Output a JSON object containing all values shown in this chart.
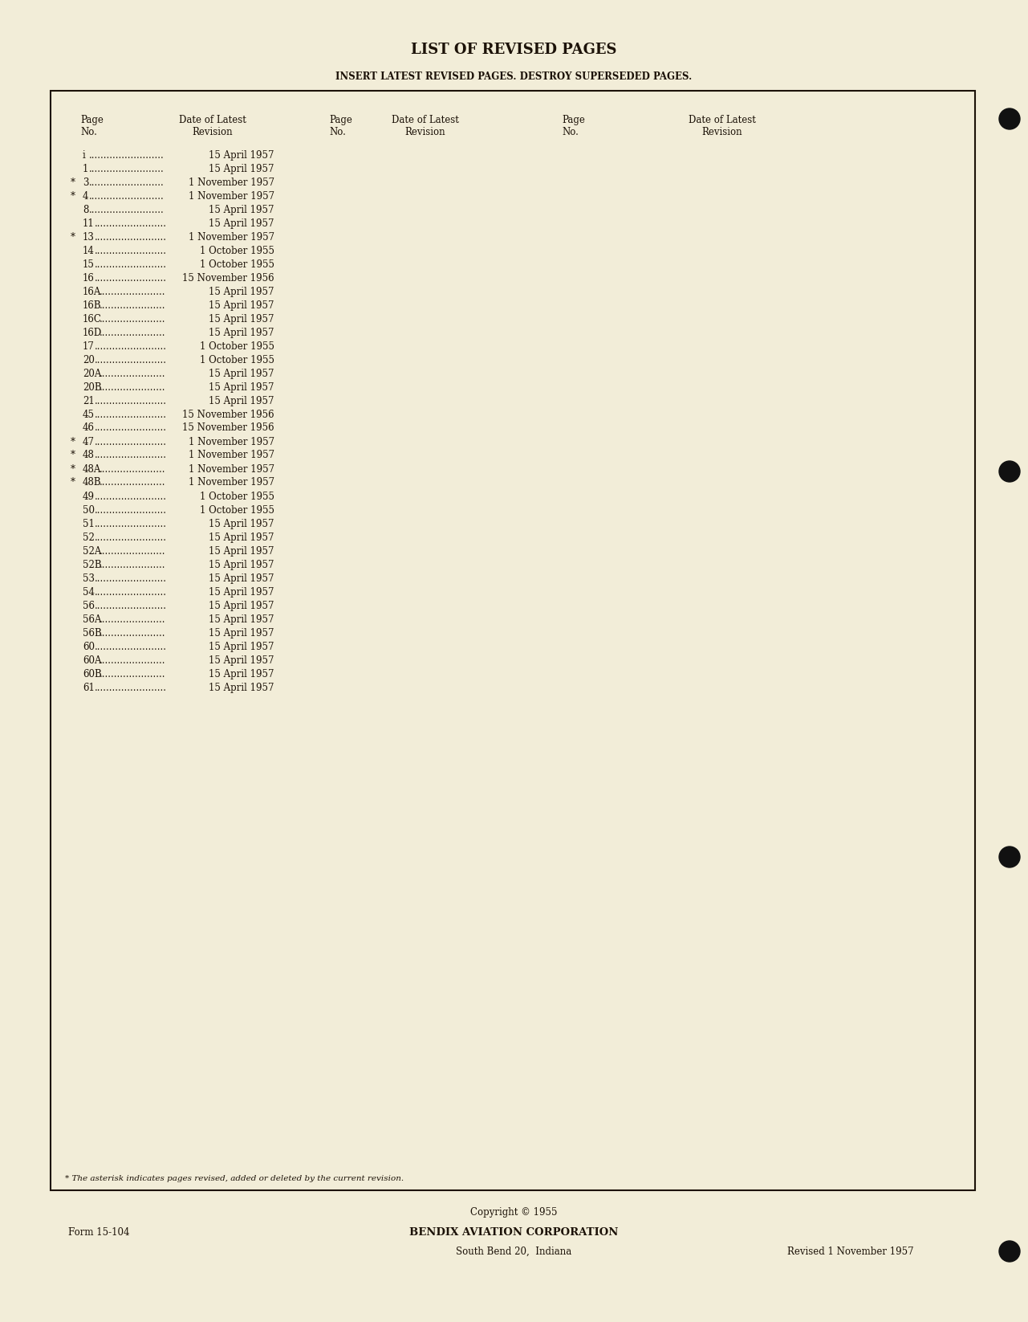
{
  "bg_color": "#f2edd8",
  "title": "LIST OF REVISED PAGES",
  "subtitle": "INSERT LATEST REVISED PAGES. DESTROY SUPERSEDED PAGES.",
  "entries": [
    {
      "page": "i",
      "date": "15 April 1957",
      "asterisk": false
    },
    {
      "page": "1",
      "date": "15 April 1957",
      "asterisk": false
    },
    {
      "page": "3",
      "date": "1 November 1957",
      "asterisk": true
    },
    {
      "page": "4",
      "date": "1 November 1957",
      "asterisk": true
    },
    {
      "page": "8",
      "date": "15 April 1957",
      "asterisk": false
    },
    {
      "page": "11",
      "date": "15 April 1957",
      "asterisk": false
    },
    {
      "page": "13",
      "date": "1 November 1957",
      "asterisk": true
    },
    {
      "page": "14",
      "date": "1 October 1955",
      "asterisk": false
    },
    {
      "page": "15",
      "date": "1 October 1955",
      "asterisk": false
    },
    {
      "page": "16",
      "date": "15 November 1956",
      "asterisk": false
    },
    {
      "page": "16A",
      "date": "15 April 1957",
      "asterisk": false
    },
    {
      "page": "16B",
      "date": "15 April 1957",
      "asterisk": false
    },
    {
      "page": "16C",
      "date": "15 April 1957",
      "asterisk": false
    },
    {
      "page": "16D",
      "date": "15 April 1957",
      "asterisk": false
    },
    {
      "page": "17",
      "date": "1 October 1955",
      "asterisk": false
    },
    {
      "page": "20",
      "date": "1 October 1955",
      "asterisk": false
    },
    {
      "page": "20A",
      "date": "15 April 1957",
      "asterisk": false
    },
    {
      "page": "20B",
      "date": "15 April 1957",
      "asterisk": false
    },
    {
      "page": "21",
      "date": "15 April 1957",
      "asterisk": false
    },
    {
      "page": "45",
      "date": "15 November 1956",
      "asterisk": false
    },
    {
      "page": "46",
      "date": "15 November 1956",
      "asterisk": false
    },
    {
      "page": "47",
      "date": "1 November 1957",
      "asterisk": true
    },
    {
      "page": "48",
      "date": "1 November 1957",
      "asterisk": true
    },
    {
      "page": "48A",
      "date": "1 November 1957",
      "asterisk": true
    },
    {
      "page": "48B",
      "date": "1 November 1957",
      "asterisk": true
    },
    {
      "page": "49",
      "date": "1 October 1955",
      "asterisk": false
    },
    {
      "page": "50",
      "date": "1 October 1955",
      "asterisk": false
    },
    {
      "page": "51",
      "date": "15 April 1957",
      "asterisk": false
    },
    {
      "page": "52",
      "date": "15 April 1957",
      "asterisk": false
    },
    {
      "page": "52A",
      "date": "15 April 1957",
      "asterisk": false
    },
    {
      "page": "52B",
      "date": "15 April 1957",
      "asterisk": false
    },
    {
      "page": "53",
      "date": "15 April 1957",
      "asterisk": false
    },
    {
      "page": "54",
      "date": "15 April 1957",
      "asterisk": false
    },
    {
      "page": "56",
      "date": "15 April 1957",
      "asterisk": false
    },
    {
      "page": "56A",
      "date": "15 April 1957",
      "asterisk": false
    },
    {
      "page": "56B",
      "date": "15 April 1957",
      "asterisk": false
    },
    {
      "page": "60",
      "date": "15 April 1957",
      "asterisk": false
    },
    {
      "page": "60A",
      "date": "15 April 1957",
      "asterisk": false
    },
    {
      "page": "60B",
      "date": "15 April 1957",
      "asterisk": false
    },
    {
      "page": "61",
      "date": "15 April 1957",
      "asterisk": false
    }
  ],
  "footnote": "* The asterisk indicates pages revised, added or deleted by the current revision.",
  "form_number": "Form 15-104",
  "company": "BENDIX AVIATION CORPORATION",
  "copyright": "Copyright © 1955",
  "address": "South Bend 20,  Indiana",
  "revised": "Revised 1 November 1957",
  "text_color": "#1c1208",
  "border_color": "#1c1208",
  "dot_color": "#111111",
  "title_fontsize": 13,
  "subtitle_fontsize": 8.5,
  "body_fontsize": 8.5,
  "header_fontsize": 8.5,
  "footer_fontsize": 8.5
}
